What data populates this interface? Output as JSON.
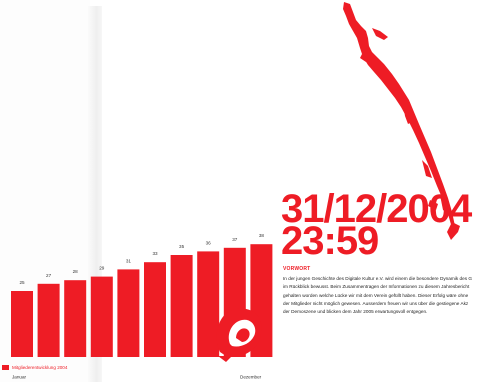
{
  "colors": {
    "accent": "#ee1c25",
    "text": "#222222",
    "background": "#ffffff"
  },
  "chart_data": {
    "type": "bar",
    "categories": [
      "",
      "",
      "",
      "",
      "",
      "",
      "",
      "",
      "",
      ""
    ],
    "values": [
      25,
      27,
      28,
      29,
      31,
      33,
      35,
      36,
      37,
      38
    ],
    "title": "",
    "xlabel": "",
    "ylabel": "",
    "x_start_label": "Januar",
    "x_end_label": "Dezember",
    "legend": [
      {
        "label": "Mitgliederentwicklung 2004",
        "color": "#ee1c25"
      }
    ],
    "legend_position": "bottom-left",
    "grid": false
  },
  "headline": {
    "line1": "31/12/2004",
    "line2": "23:59"
  },
  "section": {
    "heading": "VORWORT",
    "lines": [
      "In der jungen Geschichte des Digitale Kultur e.V. wird einem die besondere Dynamik des G",
      "im Rückblick bewusst. Beim Zusammentragen der Informationen zu diesem Jahresbericht",
      "gehalten worden welche Lücke wir mit dem Verein gefüllt haben. Dieser Erfolg wäre ohne",
      "der Mitglieder nicht möglich gewesen. Ausserdem freuen wir uns über die gestiegene Akz",
      "der Demoszene und blicken dem Jahr 2005 erwartungsvoll entgegen."
    ]
  }
}
